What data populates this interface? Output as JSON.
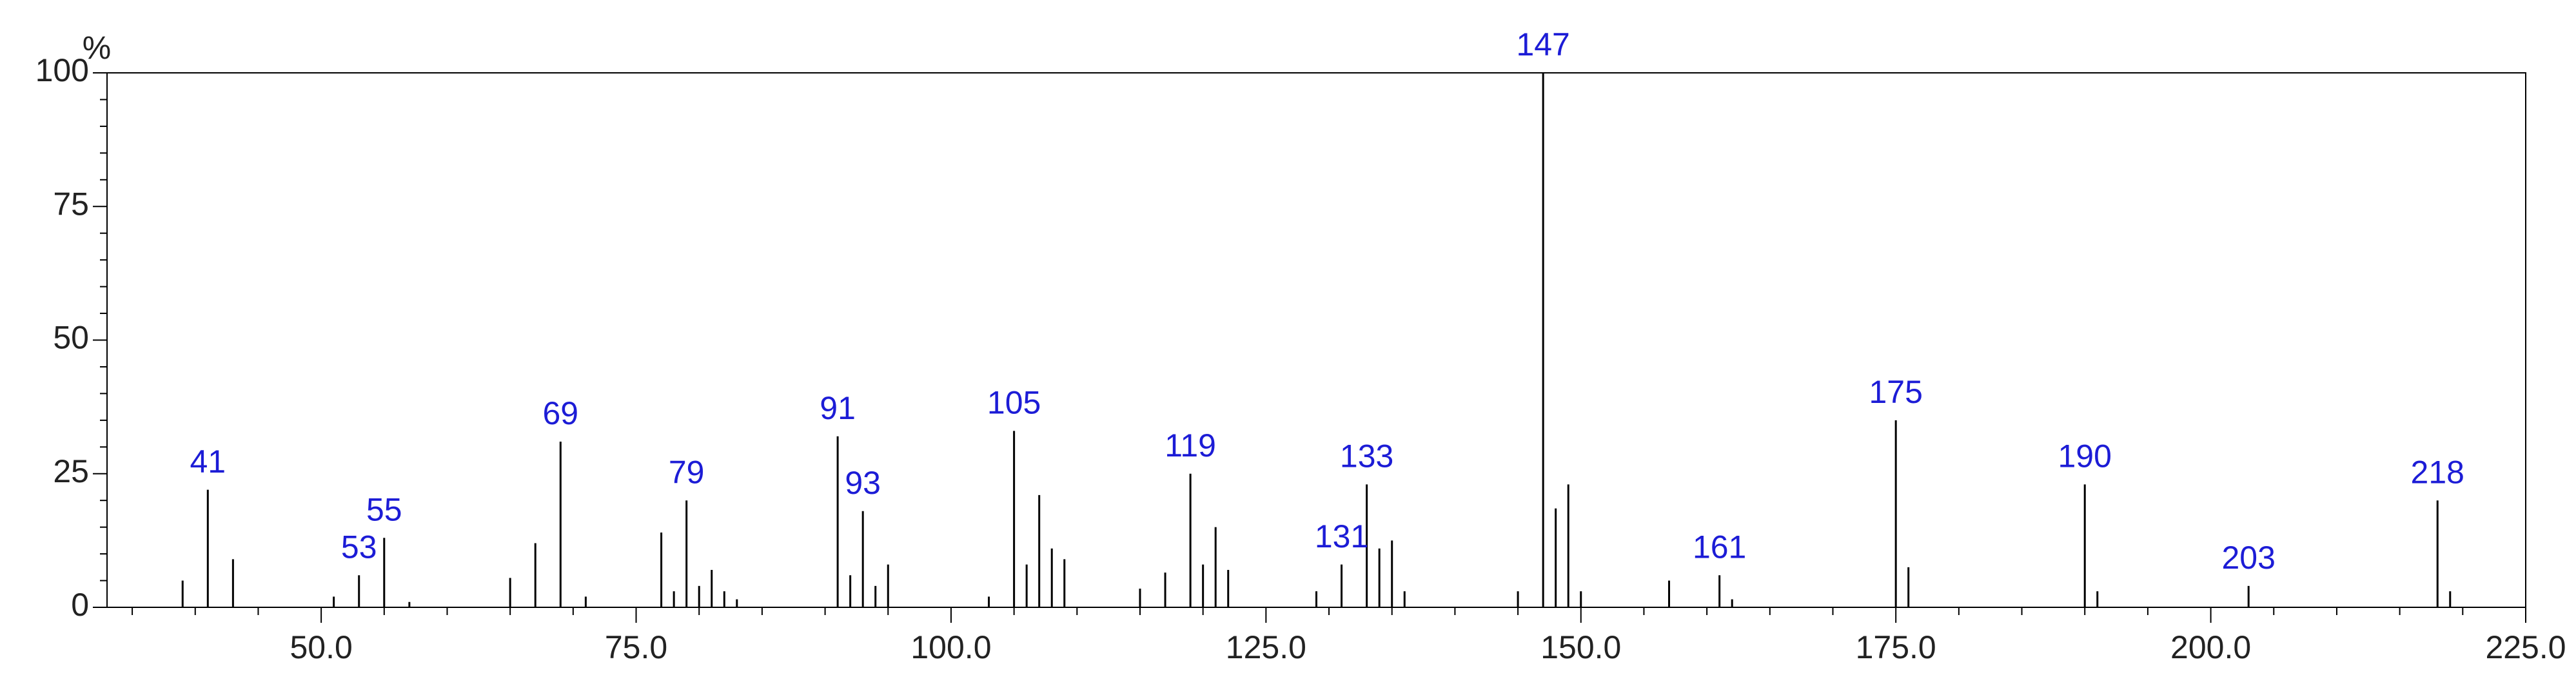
{
  "chart_data": {
    "type": "spectrum",
    "y_unit": "%",
    "x": [
      39,
      41,
      43,
      51,
      53,
      55,
      57,
      65,
      67,
      69,
      71,
      77,
      78,
      79,
      80,
      81,
      82,
      83,
      91,
      92,
      93,
      94,
      95,
      103,
      105,
      106,
      107,
      108,
      109,
      115,
      117,
      119,
      120,
      121,
      122,
      129,
      131,
      133,
      134,
      135,
      136,
      145,
      147,
      148,
      149,
      150,
      157,
      161,
      162,
      175,
      176,
      190,
      191,
      203,
      218,
      219
    ],
    "values": [
      5,
      22,
      9,
      2,
      6,
      13,
      1,
      5.5,
      12,
      31,
      2,
      14,
      3,
      20,
      4,
      7,
      3,
      1.5,
      32,
      6,
      18,
      4,
      8,
      2,
      33,
      8,
      21,
      11,
      9,
      3.5,
      6.5,
      25,
      8,
      15,
      7,
      3,
      8,
      23,
      11,
      12.5,
      3,
      3,
      100,
      18.5,
      23,
      3,
      5,
      6,
      1.5,
      35,
      7.5,
      23,
      3,
      4,
      20,
      3
    ],
    "annotations": [
      {
        "label": "41",
        "x": 41
      },
      {
        "label": "53",
        "x": 53
      },
      {
        "label": "55",
        "x": 55
      },
      {
        "label": "69",
        "x": 69
      },
      {
        "label": "79",
        "x": 79
      },
      {
        "label": "91",
        "x": 91
      },
      {
        "label": "93",
        "x": 93
      },
      {
        "label": "105",
        "x": 105
      },
      {
        "label": "119",
        "x": 119
      },
      {
        "label": "131",
        "x": 131
      },
      {
        "label": "133",
        "x": 133
      },
      {
        "label": "147",
        "x": 147
      },
      {
        "label": "161",
        "x": 161
      },
      {
        "label": "175",
        "x": 175
      },
      {
        "label": "190",
        "x": 190
      },
      {
        "label": "203",
        "x": 203
      },
      {
        "label": "218",
        "x": 218
      }
    ],
    "color": "#000000",
    "xlim": [
      33,
      225
    ],
    "ylim": [
      0,
      100
    ],
    "xticks": [
      {
        "value": 50,
        "label": "50.0"
      },
      {
        "value": 75,
        "label": "75.0"
      },
      {
        "value": 100,
        "label": "100.0"
      },
      {
        "value": 125,
        "label": "125.0"
      },
      {
        "value": 150,
        "label": "150.0"
      },
      {
        "value": 175,
        "label": "175.0"
      },
      {
        "value": 200,
        "label": "200.0"
      },
      {
        "value": 225,
        "label": "225.0"
      }
    ],
    "yticks": [
      0,
      25,
      50,
      75,
      100
    ]
  }
}
